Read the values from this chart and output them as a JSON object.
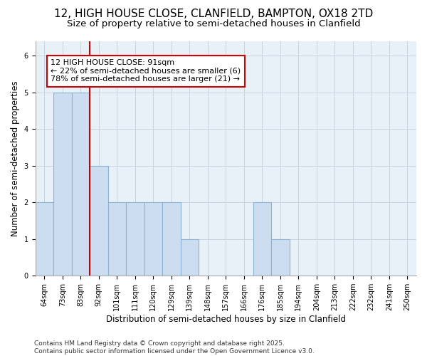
{
  "title_line1": "12, HIGH HOUSE CLOSE, CLANFIELD, BAMPTON, OX18 2TD",
  "title_line2": "Size of property relative to semi-detached houses in Clanfield",
  "xlabel": "Distribution of semi-detached houses by size in Clanfield",
  "ylabel": "Number of semi-detached properties",
  "bin_labels": [
    "64sqm",
    "73sqm",
    "83sqm",
    "92sqm",
    "101sqm",
    "111sqm",
    "120sqm",
    "129sqm",
    "139sqm",
    "148sqm",
    "157sqm",
    "166sqm",
    "176sqm",
    "185sqm",
    "194sqm",
    "204sqm",
    "213sqm",
    "222sqm",
    "232sqm",
    "241sqm",
    "250sqm"
  ],
  "bar_heights": [
    2,
    5,
    5,
    3,
    2,
    2,
    2,
    2,
    1,
    0,
    0,
    0,
    2,
    1,
    0,
    0,
    0,
    0,
    0,
    0,
    0
  ],
  "bar_color": "#ccddf0",
  "bar_edge_color": "#8ab4d4",
  "highlight_bin_index": 3,
  "highlight_line_color": "#cc0000",
  "annotation_text": "12 HIGH HOUSE CLOSE: 91sqm\n← 22% of semi-detached houses are smaller (6)\n78% of semi-detached houses are larger (21) →",
  "annotation_box_color": "#cc0000",
  "ylim": [
    0,
    6.4
  ],
  "yticks": [
    0,
    1,
    2,
    3,
    4,
    5,
    6
  ],
  "footer_line1": "Contains HM Land Registry data © Crown copyright and database right 2025.",
  "footer_line2": "Contains public sector information licensed under the Open Government Licence v3.0.",
  "bg_color": "#ffffff",
  "plot_bg_color": "#e8f0f8",
  "grid_color": "#c8d4e0",
  "title_fontsize": 11,
  "subtitle_fontsize": 9.5,
  "axis_label_fontsize": 8.5,
  "tick_fontsize": 7,
  "footer_fontsize": 6.5,
  "annotation_fontsize": 8
}
